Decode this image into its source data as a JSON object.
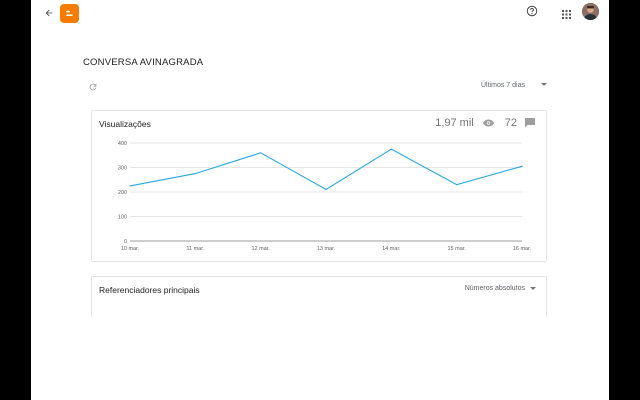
{
  "header": {
    "back_icon": "arrow-back-icon",
    "logo_icon": "blogger-logo-icon",
    "logo_color": "#f57c00",
    "help_icon": "help-icon",
    "apps_icon": "apps-grid-icon"
  },
  "post": {
    "title": "CONVERSA AVINAGRADA",
    "refresh_icon": "refresh-icon",
    "range_label": "Últimos 7 dias"
  },
  "views_card": {
    "title": "Visualizações",
    "views_total": "1,97 mil",
    "comments_total": "72"
  },
  "referrers_card": {
    "title": "Referenciadores principais",
    "mode_label": "Números absolutos"
  },
  "chart_data": {
    "type": "line",
    "x": [
      "10 mar.",
      "11 mar.",
      "12 mar.",
      "13 mar.",
      "14 mar.",
      "15 mar.",
      "16 mar."
    ],
    "series": [
      {
        "values": [
          225,
          275,
          360,
          210,
          375,
          230,
          305
        ],
        "color": "#29a8e0"
      }
    ],
    "ylim": [
      0,
      400
    ],
    "yticks": [
      0,
      100,
      200,
      300,
      400
    ],
    "grid": true
  }
}
